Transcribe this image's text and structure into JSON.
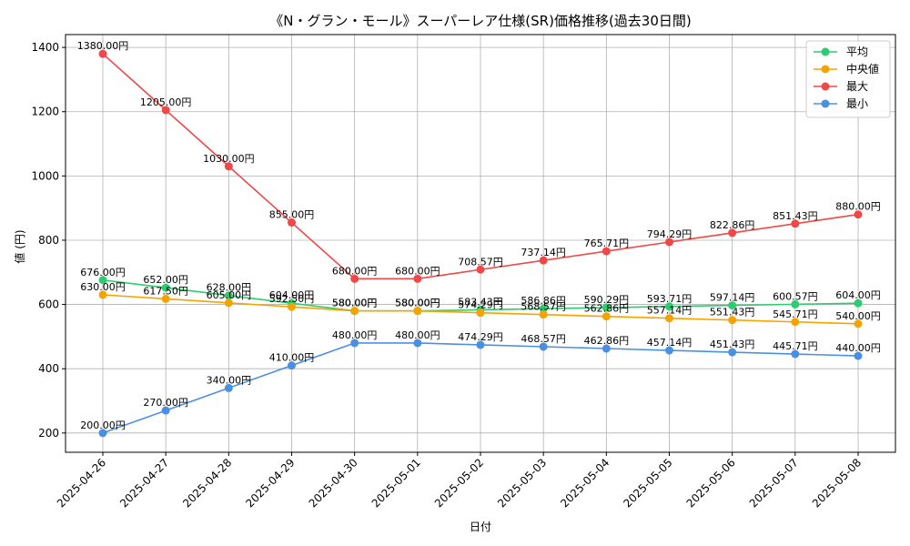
{
  "chart_data": {
    "type": "line",
    "title": "《N・グラン・モール》スーパーレア仕様(SR)価格推移(過去30日間)",
    "xlabel": "日付",
    "ylabel": "値 (円)",
    "categories": [
      "2025-04-26",
      "2025-04-27",
      "2025-04-28",
      "2025-04-29",
      "2025-04-30",
      "2025-05-01",
      "2025-05-02",
      "2025-05-03",
      "2025-05-04",
      "2025-05-05",
      "2025-05-06",
      "2025-05-07",
      "2025-05-08"
    ],
    "ylim": [
      140,
      1440
    ],
    "yticks": [
      200,
      400,
      600,
      800,
      1000,
      1200,
      1400
    ],
    "grid": true,
    "legend_position": "top-right",
    "series": [
      {
        "name": "平均",
        "color": "#2ecc71",
        "values": [
          676.0,
          652.0,
          628.0,
          604.0,
          580.0,
          580.0,
          583.43,
          586.86,
          590.29,
          593.71,
          597.14,
          600.57,
          604.0
        ],
        "labels": [
          "676.00円",
          "652.00円",
          "628.00円",
          "604.00円",
          "580.00円",
          "580.00円",
          "583.43円",
          "586.86円",
          "590.29円",
          "593.71円",
          "597.14円",
          "600.57円",
          "604.00円"
        ]
      },
      {
        "name": "中央値",
        "color": "#f5a300",
        "values": [
          630.0,
          617.5,
          605.0,
          592.5,
          580.0,
          580.0,
          574.29,
          568.57,
          562.86,
          557.14,
          551.43,
          545.71,
          540.0
        ],
        "labels": [
          "630.00円",
          "617.50円",
          "605.00円",
          "592.50円",
          "580.00円",
          "580.00円",
          "574.29円",
          "568.57円",
          "562.86円",
          "557.14円",
          "551.43円",
          "545.71円",
          "540.00円"
        ]
      },
      {
        "name": "最大",
        "color": "#f04747",
        "values": [
          1380.0,
          1205.0,
          1030.0,
          855.0,
          680.0,
          680.0,
          708.57,
          737.14,
          765.71,
          794.29,
          822.86,
          851.43,
          880.0
        ],
        "labels": [
          "1380.00円",
          "1205.00円",
          "1030.00円",
          "855.00円",
          "680.00円",
          "680.00円",
          "708.57円",
          "737.14円",
          "765.71円",
          "794.29円",
          "822.86円",
          "851.43円",
          "880.00円"
        ]
      },
      {
        "name": "最小",
        "color": "#4a90e2",
        "values": [
          200.0,
          270.0,
          340.0,
          410.0,
          480.0,
          480.0,
          474.29,
          468.57,
          462.86,
          457.14,
          451.43,
          445.71,
          440.0
        ],
        "labels": [
          "200.00円",
          "270.00円",
          "340.00円",
          "410.00円",
          "480.00円",
          "480.00円",
          "474.29円",
          "468.57円",
          "462.86円",
          "457.14円",
          "451.43円",
          "445.71円",
          "440.00円"
        ]
      }
    ]
  }
}
